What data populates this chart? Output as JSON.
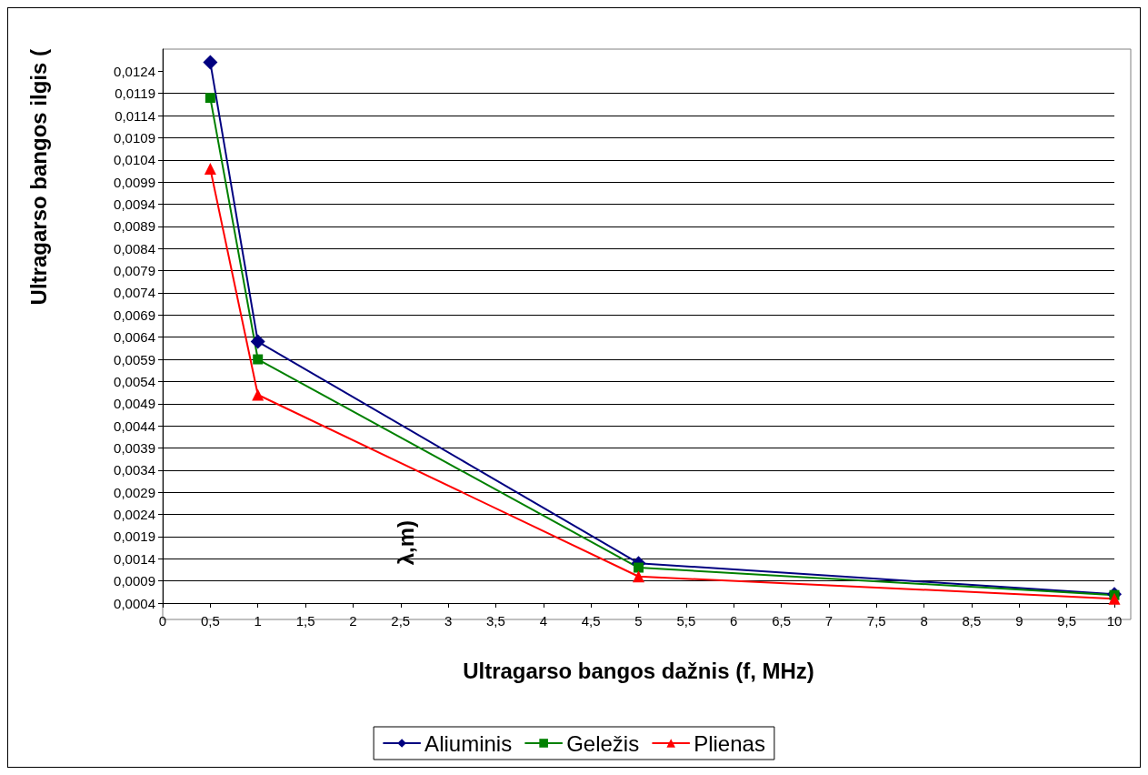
{
  "chart_data": {
    "type": "line",
    "xlabel": "Ultragarso bangos dažnis (f, MHz)",
    "ylabel": "Ultragarso bangos ilgis (",
    "annotations": [
      "λ,m)"
    ],
    "x": [
      0.5,
      1,
      5,
      10
    ],
    "series": [
      {
        "name": "Aliuminis",
        "color": "#000080",
        "marker": "diamond",
        "values": [
          0.0126,
          0.0063,
          0.0013,
          0.0006
        ]
      },
      {
        "name": "Geležis",
        "color": "#008000",
        "marker": "square",
        "values": [
          0.0118,
          0.0059,
          0.0012,
          0.00058
        ]
      },
      {
        "name": "Plienas",
        "color": "#ff0000",
        "marker": "triangle",
        "values": [
          0.0102,
          0.0051,
          0.001,
          0.0005
        ]
      }
    ],
    "xlim": [
      0,
      10
    ],
    "xticks": [
      0,
      {
        "value": 0.5,
        "label": "0,5"
      },
      1,
      {
        "value": 1.5,
        "label": "1,5"
      },
      2,
      {
        "value": 2.5,
        "label": "2,5"
      },
      3,
      {
        "value": 3.5,
        "label": "3,5"
      },
      4,
      {
        "value": 4.5,
        "label": "4,5"
      },
      5,
      {
        "value": 5.5,
        "label": "5,5"
      },
      6,
      {
        "value": 6.5,
        "label": "6,5"
      },
      7,
      {
        "value": 7.5,
        "label": "7,5"
      },
      8,
      {
        "value": 8.5,
        "label": "8,5"
      },
      9,
      {
        "value": 9.5,
        "label": "9,5"
      },
      10
    ],
    "ylim": [
      0.0004,
      0.0129
    ],
    "yticks": [
      {
        "value": 0.0004,
        "label": "0,0004"
      },
      {
        "value": 0.0009,
        "label": "0,0009"
      },
      {
        "value": 0.0014,
        "label": "0,0014"
      },
      {
        "value": 0.0019,
        "label": "0,0019"
      },
      {
        "value": 0.0024,
        "label": "0,0024"
      },
      {
        "value": 0.0029,
        "label": "0,0029"
      },
      {
        "value": 0.0034,
        "label": "0,0034"
      },
      {
        "value": 0.0039,
        "label": "0,0039"
      },
      {
        "value": 0.0044,
        "label": "0,0044"
      },
      {
        "value": 0.0049,
        "label": "0,0049"
      },
      {
        "value": 0.0054,
        "label": "0,0054"
      },
      {
        "value": 0.0059,
        "label": "0,0059"
      },
      {
        "value": 0.0064,
        "label": "0,0064"
      },
      {
        "value": 0.0069,
        "label": "0,0069"
      },
      {
        "value": 0.0074,
        "label": "0,0074"
      },
      {
        "value": 0.0079,
        "label": "0,0079"
      },
      {
        "value": 0.0084,
        "label": "0,0084"
      },
      {
        "value": 0.0089,
        "label": "0,0089"
      },
      {
        "value": 0.0094,
        "label": "0,0094"
      },
      {
        "value": 0.0099,
        "label": "0,0099"
      },
      {
        "value": 0.0104,
        "label": "0,0104"
      },
      {
        "value": 0.0109,
        "label": "0,0109"
      },
      {
        "value": 0.0114,
        "label": "0,0114"
      },
      {
        "value": 0.0119,
        "label": "0,0119"
      },
      {
        "value": 0.0124,
        "label": "0,0124"
      }
    ],
    "grid": "y",
    "legend": "bottom",
    "line_style": "solid"
  }
}
